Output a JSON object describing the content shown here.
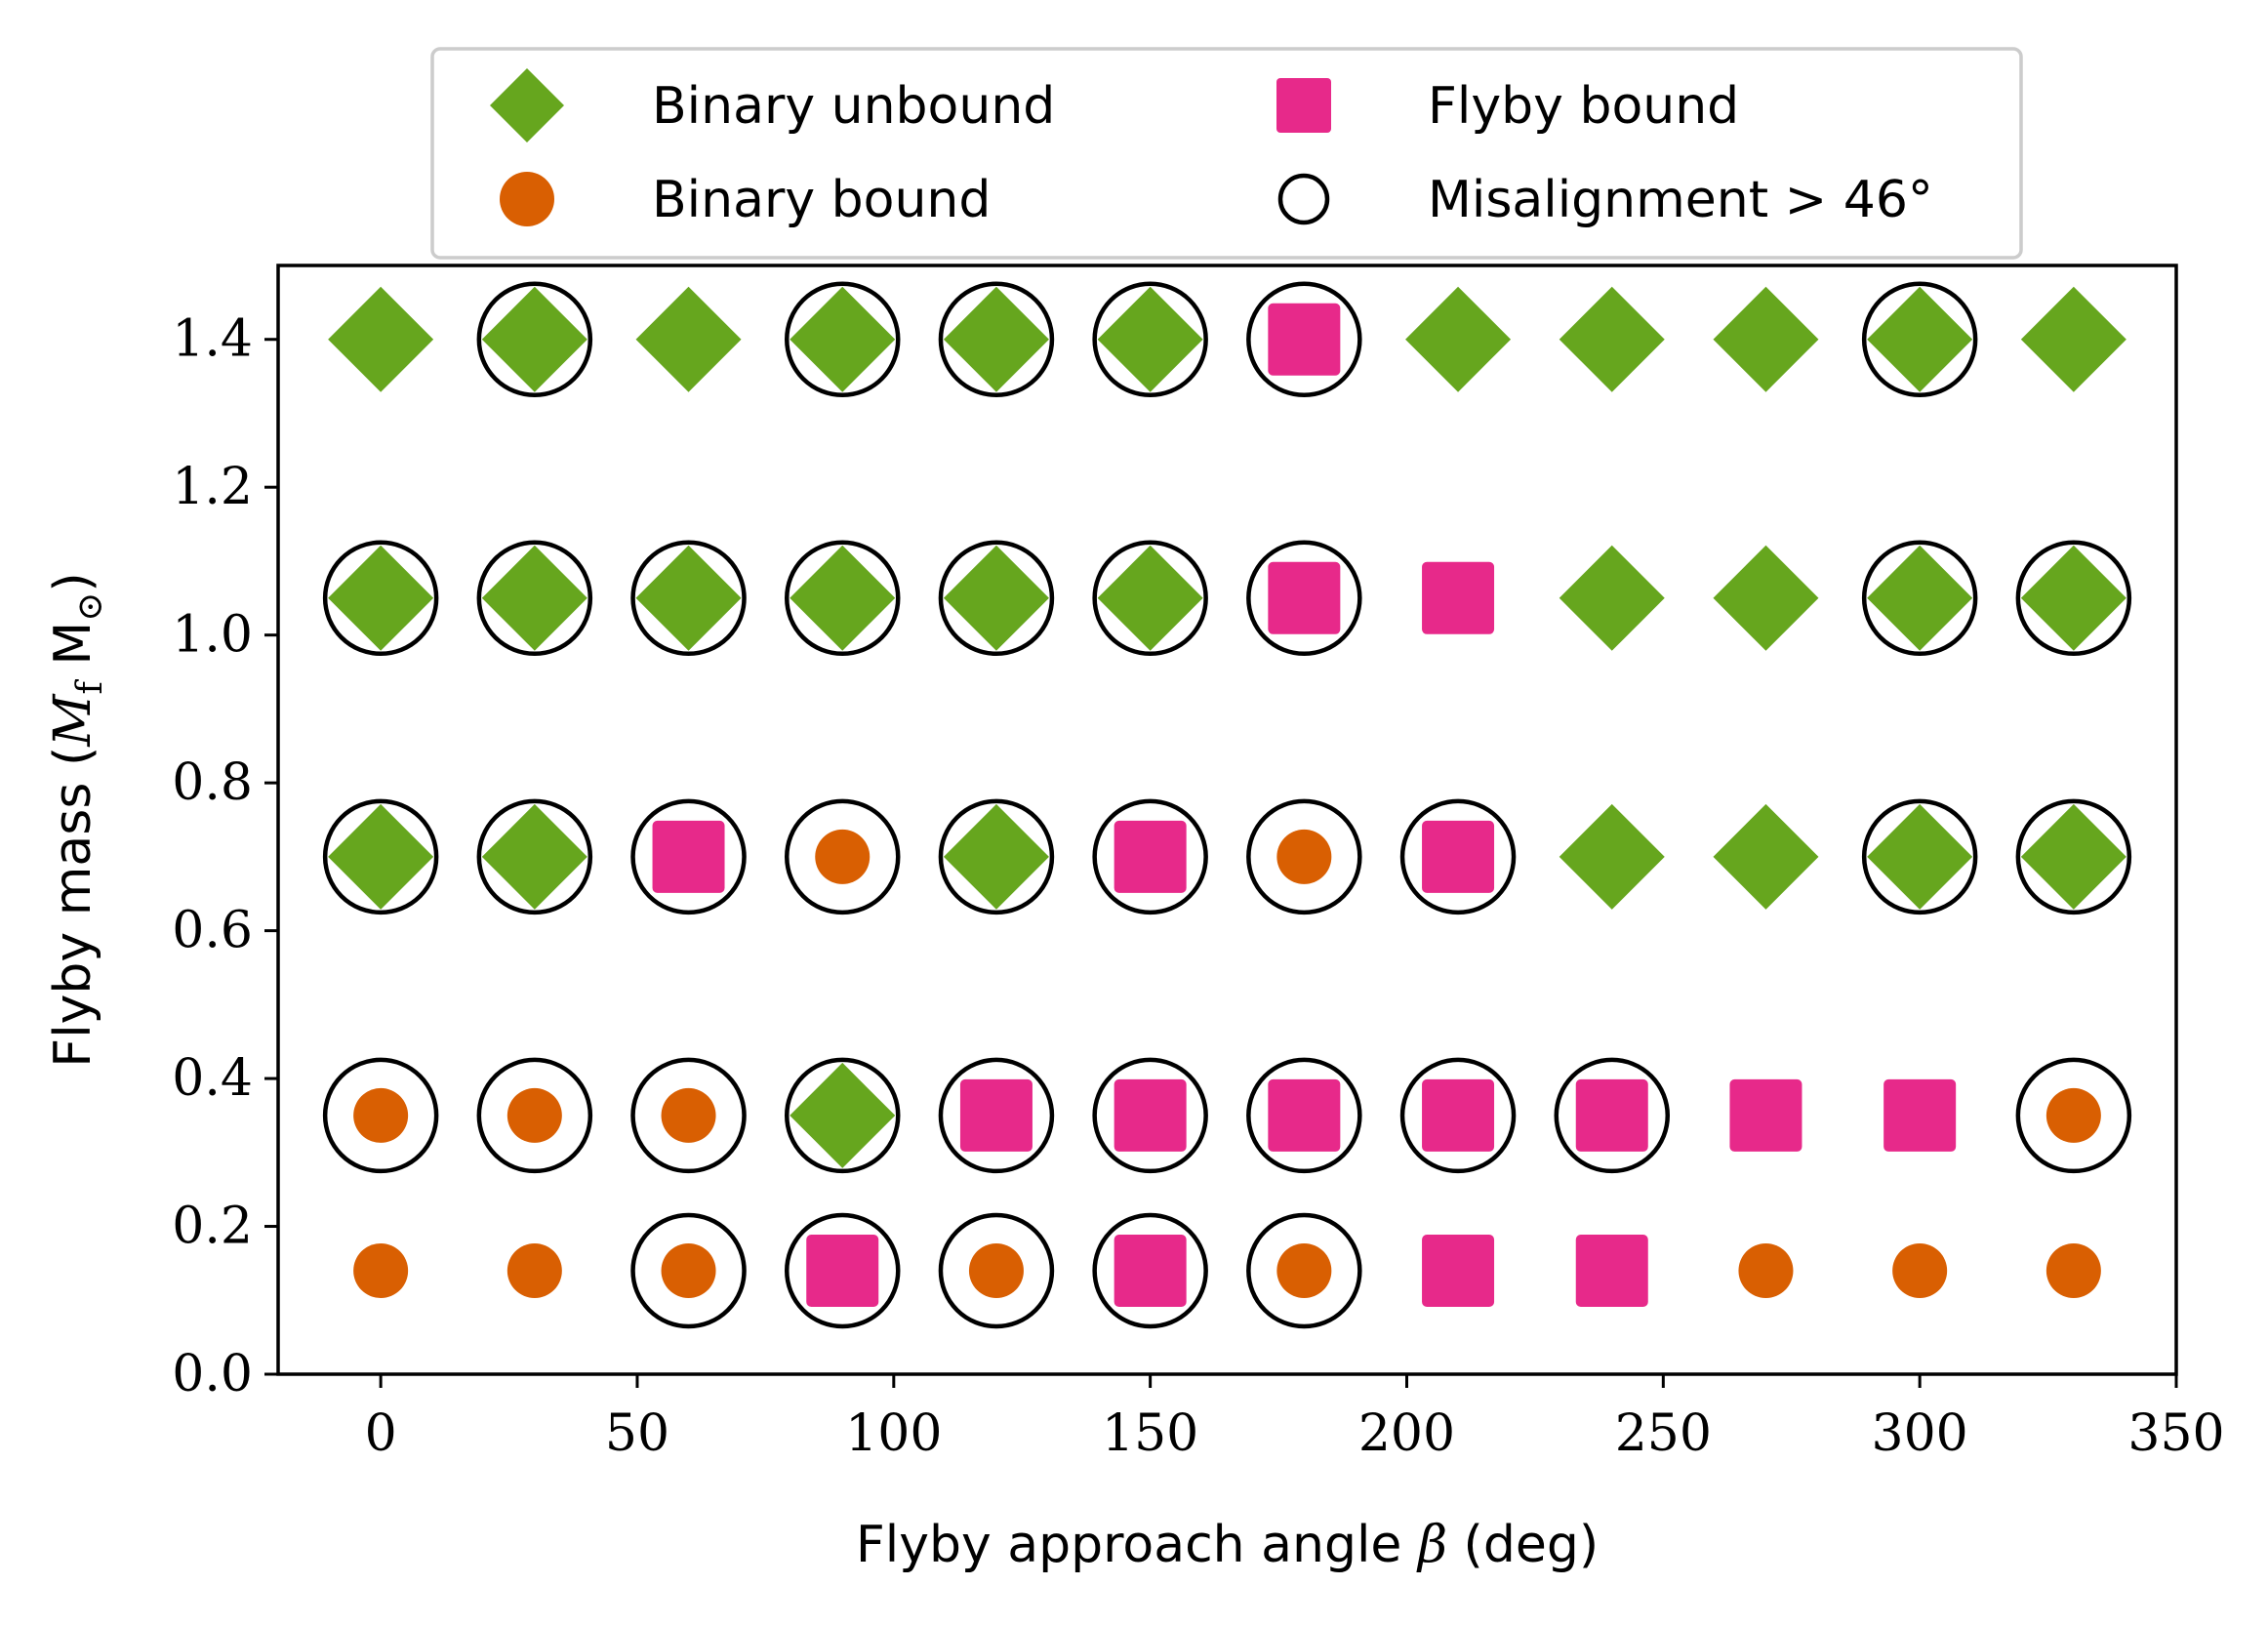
{
  "chart_data": {
    "type": "scatter",
    "xlabel": "Flyby approach angle β (deg)",
    "ylabel": "Flyby mass (M_f M⊙)",
    "ylabel_parts": {
      "text": "Flyby mass (",
      "var": "M",
      "var_sub": "f",
      "unit": "M",
      "unit_sub": "⊙",
      "close": ")"
    },
    "xlabel_parts": {
      "text": "Flyby approach angle ",
      "var": "β",
      "close": " (deg)"
    },
    "xlim": [
      -20,
      350
    ],
    "ylim": [
      0.0,
      1.5
    ],
    "xticks": [
      0,
      50,
      100,
      150,
      200,
      250,
      300,
      350
    ],
    "xtick_labels": [
      "0",
      "50",
      "100",
      "150",
      "200",
      "250",
      "300",
      "350"
    ],
    "yticks": [
      0.0,
      0.2,
      0.4,
      0.6,
      0.8,
      1.0,
      1.2,
      1.4
    ],
    "ytick_labels": [
      "0.0",
      "0.2",
      "0.4",
      "0.6",
      "0.8",
      "1.0",
      "1.2",
      "1.4"
    ],
    "grid": false,
    "legend_position": "top-center-outside",
    "legend": [
      {
        "key": "binary_unbound",
        "label": "Binary unbound",
        "marker": "diamond",
        "color": "#66a61e"
      },
      {
        "key": "binary_bound",
        "label": "Binary bound",
        "marker": "circle",
        "color": "#d95f02"
      },
      {
        "key": "flyby_bound",
        "label": "Flyby bound",
        "marker": "square",
        "color": "#e7298a"
      },
      {
        "key": "misaligned",
        "label": "Misalignment > 46°",
        "marker": "open-circle",
        "color": "#000000"
      }
    ],
    "x_values": [
      0,
      30,
      60,
      90,
      120,
      150,
      180,
      210,
      240,
      270,
      300,
      330
    ],
    "rows": [
      {
        "mass": 1.4,
        "outcomes": [
          "U",
          "U",
          "U",
          "U",
          "U",
          "U",
          "F",
          "U",
          "U",
          "U",
          "U",
          "U"
        ],
        "misaligned": [
          0,
          1,
          0,
          1,
          1,
          1,
          1,
          0,
          0,
          0,
          1,
          0
        ]
      },
      {
        "mass": 1.05,
        "outcomes": [
          "U",
          "U",
          "U",
          "U",
          "U",
          "U",
          "F",
          "F",
          "U",
          "U",
          "U",
          "U"
        ],
        "misaligned": [
          1,
          1,
          1,
          1,
          1,
          1,
          1,
          0,
          0,
          0,
          1,
          1
        ]
      },
      {
        "mass": 0.7,
        "outcomes": [
          "U",
          "U",
          "F",
          "B",
          "U",
          "F",
          "B",
          "F",
          "U",
          "U",
          "U",
          "U"
        ],
        "misaligned": [
          1,
          1,
          1,
          1,
          1,
          1,
          1,
          1,
          0,
          0,
          1,
          1
        ]
      },
      {
        "mass": 0.35,
        "outcomes": [
          "B",
          "B",
          "B",
          "U",
          "F",
          "F",
          "F",
          "F",
          "F",
          "F",
          "F",
          "B"
        ],
        "misaligned": [
          1,
          1,
          1,
          1,
          1,
          1,
          1,
          1,
          1,
          0,
          0,
          1
        ]
      },
      {
        "mass": 0.14,
        "outcomes": [
          "B",
          "B",
          "B",
          "F",
          "B",
          "F",
          "B",
          "F",
          "F",
          "B",
          "B",
          "B"
        ],
        "misaligned": [
          0,
          0,
          1,
          1,
          1,
          1,
          1,
          0,
          0,
          0,
          0,
          0
        ]
      }
    ],
    "outcome_codes": {
      "U": "binary_unbound",
      "B": "binary_bound",
      "F": "flyby_bound"
    }
  }
}
